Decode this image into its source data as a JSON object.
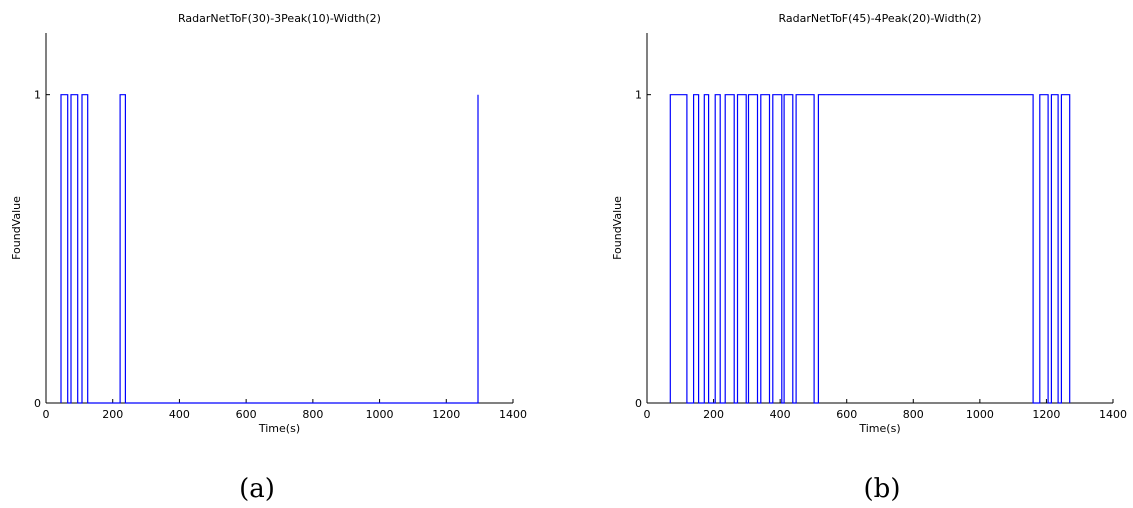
{
  "figure": {
    "captions": [
      "(a)",
      "(b)"
    ]
  },
  "chart_data": [
    {
      "type": "line",
      "style": "step",
      "title": "RadarNetToF(30)-3Peak(10)-Width(2)",
      "xlabel": "Time(s)",
      "ylabel": "FoundValue",
      "xlim": [
        0,
        1400
      ],
      "ylim": [
        0,
        1.2
      ],
      "xticks": [
        0,
        200,
        400,
        600,
        800,
        1000,
        1200,
        1400
      ],
      "yticks": [
        0,
        1
      ],
      "color": "#0000ff",
      "x": [
        45,
        45,
        65,
        65,
        75,
        75,
        95,
        95,
        108,
        108,
        125,
        125,
        222,
        222,
        238,
        238,
        1295,
        1295
      ],
      "y": [
        0,
        1,
        1,
        0,
        0,
        1,
        1,
        0,
        0,
        1,
        1,
        0,
        0,
        1,
        1,
        0,
        0,
        1
      ]
    },
    {
      "type": "line",
      "style": "step",
      "title": "RadarNetToF(45)-4Peak(20)-Width(2)",
      "xlabel": "Time(s)",
      "ylabel": "FoundValue",
      "xlim": [
        0,
        1400
      ],
      "ylim": [
        0,
        1.2
      ],
      "xticks": [
        0,
        200,
        400,
        600,
        800,
        1000,
        1200,
        1400
      ],
      "yticks": [
        0,
        1
      ],
      "color": "#0000ff",
      "x": [
        70,
        70,
        120,
        120,
        140,
        140,
        155,
        155,
        172,
        172,
        185,
        185,
        205,
        205,
        220,
        220,
        235,
        235,
        262,
        262,
        272,
        272,
        298,
        298,
        305,
        305,
        332,
        332,
        342,
        342,
        368,
        368,
        378,
        378,
        405,
        405,
        412,
        412,
        438,
        438,
        448,
        448,
        502,
        502,
        515,
        515,
        1160,
        1160,
        1180,
        1180,
        1205,
        1205,
        1215,
        1215,
        1235,
        1235,
        1245,
        1245,
        1270,
        1270
      ],
      "y": [
        0,
        1,
        1,
        0,
        0,
        1,
        1,
        0,
        0,
        1,
        1,
        0,
        0,
        1,
        1,
        0,
        0,
        1,
        1,
        0,
        0,
        1,
        1,
        0,
        0,
        1,
        1,
        0,
        0,
        1,
        1,
        0,
        0,
        1,
        1,
        0,
        0,
        1,
        1,
        0,
        0,
        1,
        1,
        0,
        0,
        1,
        1,
        0,
        0,
        1,
        1,
        0,
        0,
        1,
        1,
        0,
        0,
        1,
        1,
        0
      ]
    }
  ]
}
